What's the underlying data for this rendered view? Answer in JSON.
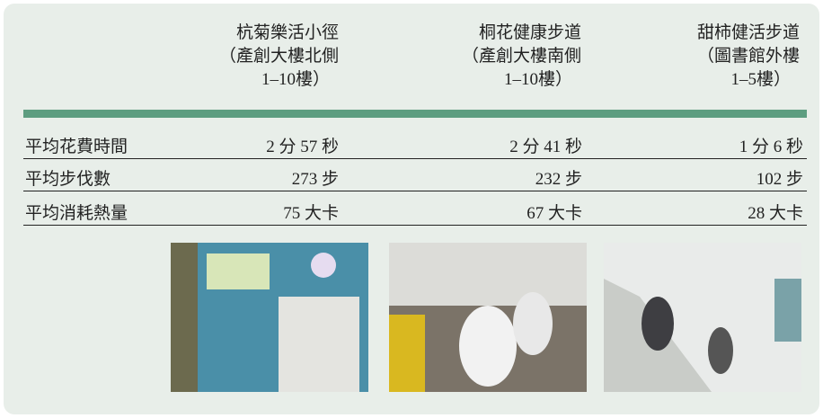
{
  "table": {
    "columns": [
      {
        "lines": [
          "杭菊樂活小徑",
          "（產創大樓北側",
          "1–10樓）"
        ]
      },
      {
        "lines": [
          "桐花健康步道",
          "（產創大樓南側",
          "1–10樓）"
        ]
      },
      {
        "lines": [
          "甜柿健活步道",
          "（圖書館外樓",
          "1–5樓）"
        ]
      }
    ],
    "rows": [
      [
        "平均花費時間",
        "2 分 57 秒",
        "2 分 41 秒",
        "1 分 6 秒"
      ],
      [
        "平均步伐數",
        "273 步",
        "232 步",
        "102 步"
      ],
      [
        "平均消耗熱量",
        "75 大卡",
        "67 大卡",
        "28 大卡"
      ]
    ]
  }
}
